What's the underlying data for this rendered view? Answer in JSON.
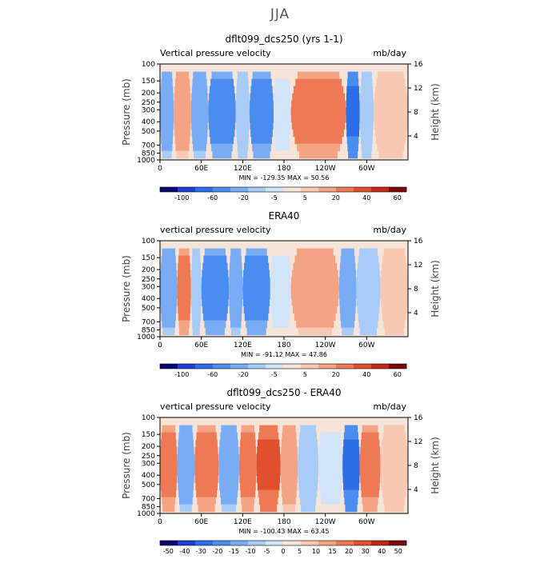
{
  "page": {
    "title": "JJA"
  },
  "colorbar_colors": [
    "#08086e",
    "#1f3fd4",
    "#2d6de8",
    "#4a8cf0",
    "#79acf5",
    "#a8cbf8",
    "#d2e4fa",
    "#f7e4d8",
    "#f8c8b2",
    "#f4a383",
    "#ee7a55",
    "#e0502f",
    "#c42816",
    "#7d0808"
  ],
  "chart_data": [
    {
      "type": "heatmap",
      "title": "dflt099_dcs250 (yrs 1-1)",
      "subtitle_left": "Vertical pressure velocity",
      "subtitle_right": "mb/day",
      "ylabel": "Pressure (mb)",
      "ylabel_right": "Height (km)",
      "y_ticks": [
        "100",
        "150",
        "200",
        "250",
        "300",
        "400",
        "500",
        "700",
        "850",
        "1000"
      ],
      "y_ticks_right": [
        "16",
        "12",
        "8",
        "4"
      ],
      "x_ticks": [
        "0",
        "60E",
        "120E",
        "180",
        "120W",
        "60W"
      ],
      "xlim": [
        0,
        360
      ],
      "stats": "MIN = -129.35   MAX =  50.56",
      "colorbar_labels": [
        "-100",
        "-60",
        "-20",
        "-5",
        "5",
        "20",
        "40",
        "60"
      ],
      "structure": [
        {
          "lon": [
            0,
            20
          ],
          "level": -2
        },
        {
          "lon": [
            20,
            45
          ],
          "level": 2
        },
        {
          "lon": [
            45,
            70
          ],
          "level": -2
        },
        {
          "lon": [
            70,
            110
          ],
          "level": -3
        },
        {
          "lon": [
            110,
            130
          ],
          "level": -1
        },
        {
          "lon": [
            130,
            165
          ],
          "level": -3
        },
        {
          "lon": [
            165,
            190
          ],
          "level": 0
        },
        {
          "lon": [
            190,
            270
          ],
          "level": 3
        },
        {
          "lon": [
            270,
            290
          ],
          "level": -4
        },
        {
          "lon": [
            290,
            310
          ],
          "level": -1
        },
        {
          "lon": [
            310,
            360
          ],
          "level": 1
        }
      ]
    },
    {
      "type": "heatmap",
      "title": "ERA40",
      "subtitle_left": "vertical pressure velocity",
      "subtitle_right": "mb/day",
      "ylabel": "Pressure (mb)",
      "ylabel_right": "Height (km)",
      "y_ticks": [
        "100",
        "150",
        "200",
        "250",
        "300",
        "400",
        "500",
        "700",
        "850",
        "1000"
      ],
      "y_ticks_right": [
        "16",
        "12",
        "8",
        "4"
      ],
      "x_ticks": [
        "0",
        "60E",
        "120E",
        "180",
        "120W",
        "60W"
      ],
      "xlim": [
        0,
        360
      ],
      "stats": "MIN = -91.12   MAX =  47.86",
      "colorbar_labels": [
        "-100",
        "-60",
        "-20",
        "-5",
        "5",
        "20",
        "40",
        "60"
      ],
      "structure": [
        {
          "lon": [
            0,
            25
          ],
          "level": -2
        },
        {
          "lon": [
            25,
            45
          ],
          "level": 3
        },
        {
          "lon": [
            45,
            60
          ],
          "level": -1
        },
        {
          "lon": [
            60,
            100
          ],
          "level": -3
        },
        {
          "lon": [
            100,
            120
          ],
          "level": -2
        },
        {
          "lon": [
            120,
            160
          ],
          "level": -3
        },
        {
          "lon": [
            160,
            190
          ],
          "level": 0
        },
        {
          "lon": [
            190,
            260
          ],
          "level": 2
        },
        {
          "lon": [
            260,
            285
          ],
          "level": -2
        },
        {
          "lon": [
            285,
            320
          ],
          "level": -1
        },
        {
          "lon": [
            320,
            360
          ],
          "level": 1
        }
      ]
    },
    {
      "type": "heatmap",
      "title": "dflt099_dcs250 - ERA40",
      "subtitle_left": "vertical pressure velocity",
      "subtitle_right": "mb/day",
      "ylabel": "Pressure (mb)",
      "ylabel_right": "Height (km)",
      "y_ticks": [
        "100",
        "150",
        "200",
        "250",
        "300",
        "400",
        "500",
        "700",
        "850",
        "1000"
      ],
      "y_ticks_right": [
        "16",
        "12",
        "8",
        "4"
      ],
      "x_ticks": [
        "0",
        "60E",
        "120E",
        "180",
        "120W",
        "60W"
      ],
      "xlim": [
        0,
        360
      ],
      "stats": "MIN = -100.43   MAX =  63.45",
      "colorbar_labels": [
        "-50",
        "-40",
        "-30",
        "-20",
        "-15",
        "-10",
        "-5",
        "0",
        "5",
        "10",
        "15",
        "20",
        "30",
        "40",
        "50"
      ],
      "structure": [
        {
          "lon": [
            0,
            25
          ],
          "level": 3
        },
        {
          "lon": [
            25,
            50
          ],
          "level": -2
        },
        {
          "lon": [
            50,
            85
          ],
          "level": 3
        },
        {
          "lon": [
            85,
            115
          ],
          "level": -2
        },
        {
          "lon": [
            115,
            140
          ],
          "level": 3
        },
        {
          "lon": [
            140,
            175
          ],
          "level": 4
        },
        {
          "lon": [
            175,
            200
          ],
          "level": 2
        },
        {
          "lon": [
            200,
            230
          ],
          "level": -1
        },
        {
          "lon": [
            230,
            265
          ],
          "level": 0
        },
        {
          "lon": [
            265,
            290
          ],
          "level": -4
        },
        {
          "lon": [
            290,
            320
          ],
          "level": 3
        },
        {
          "lon": [
            320,
            360
          ],
          "level": 1
        }
      ]
    }
  ]
}
